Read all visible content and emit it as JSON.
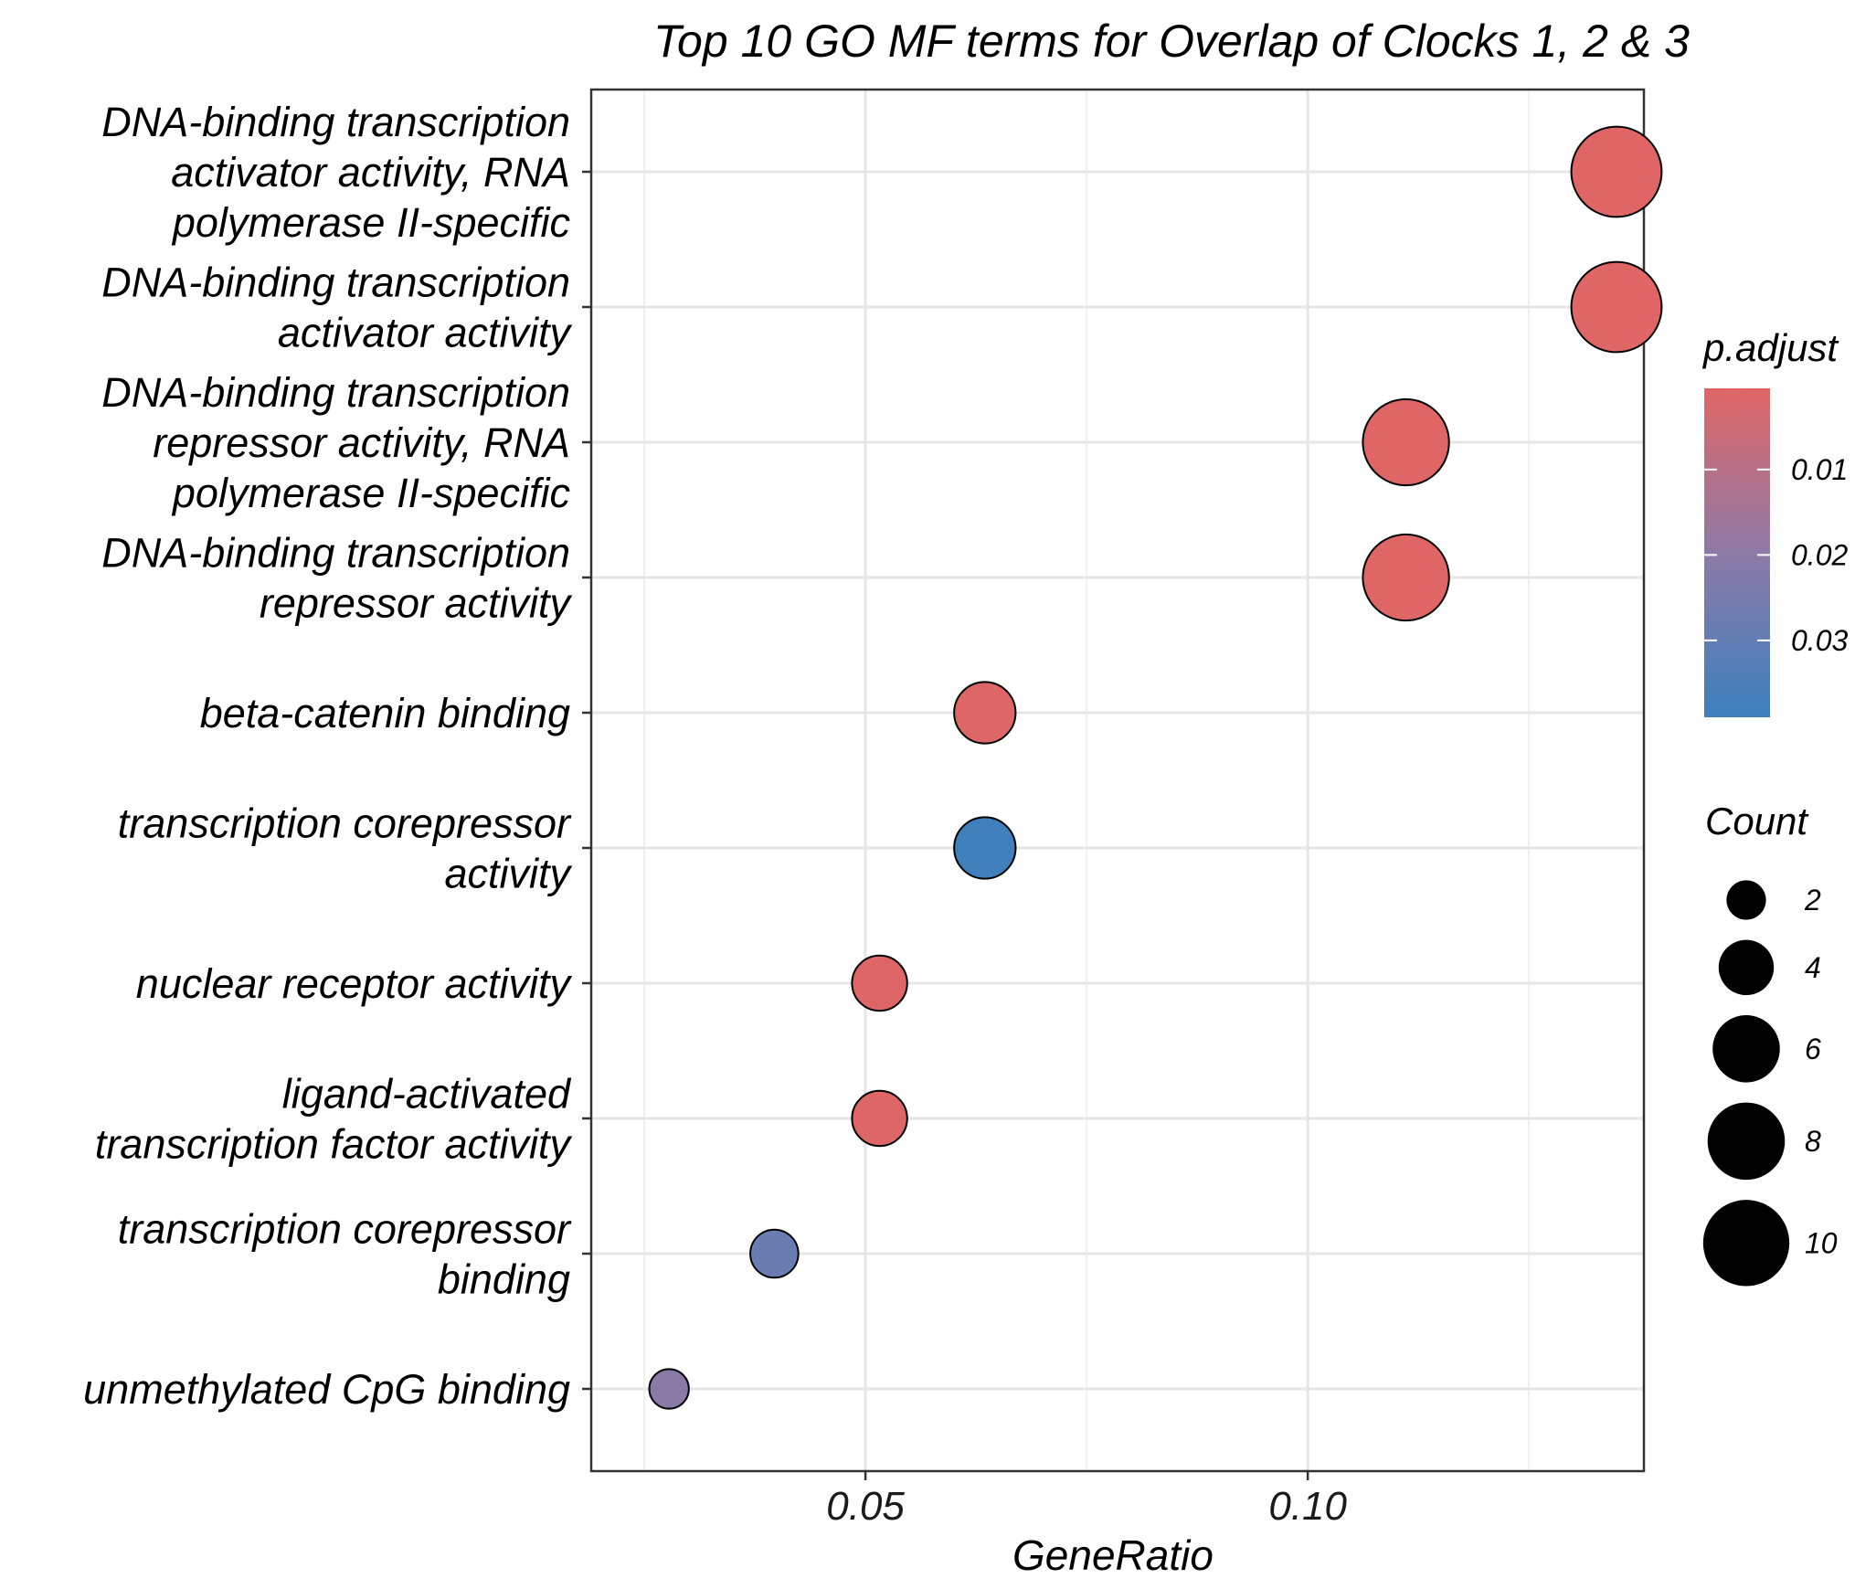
{
  "chart_data": {
    "type": "scatter",
    "title": "Top 10 GO MF terms for Overlap of Clocks 1, 2 & 3",
    "xlabel": "GeneRatio",
    "ylabel": "",
    "xlim": [
      0.019,
      0.138
    ],
    "x_ticks": [
      {
        "value": 0.05,
        "label": "0.05"
      },
      {
        "value": 0.1,
        "label": "0.10"
      }
    ],
    "x_minor_gridlines": [
      0.025,
      0.075,
      0.125
    ],
    "grid": true,
    "legend_position": "right",
    "categories": [
      [
        "DNA-binding transcription",
        "activator activity, RNA",
        "polymerase II-specific"
      ],
      [
        "DNA-binding transcription",
        "activator activity"
      ],
      [
        "DNA-binding transcription",
        "repressor activity, RNA",
        "polymerase II-specific"
      ],
      [
        "DNA-binding transcription",
        "repressor activity"
      ],
      [
        "beta-catenin binding"
      ],
      [
        "transcription corepressor",
        "activity"
      ],
      [
        "nuclear receptor activity"
      ],
      [
        "ligand-activated",
        "transcription factor activity"
      ],
      [
        "transcription corepressor",
        "binding"
      ],
      [
        "unmethylated CpG binding"
      ]
    ],
    "points": [
      {
        "x": 0.1349,
        "count": 11,
        "p_adjust": 0.0005
      },
      {
        "x": 0.1349,
        "count": 11,
        "p_adjust": 0.0005
      },
      {
        "x": 0.1111,
        "count": 10,
        "p_adjust": 0.0006
      },
      {
        "x": 0.1111,
        "count": 10,
        "p_adjust": 0.0006
      },
      {
        "x": 0.0635,
        "count": 5,
        "p_adjust": 0.0008
      },
      {
        "x": 0.0635,
        "count": 5,
        "p_adjust": 0.038
      },
      {
        "x": 0.0516,
        "count": 4,
        "p_adjust": 0.0009
      },
      {
        "x": 0.0516,
        "count": 4,
        "p_adjust": 0.0009
      },
      {
        "x": 0.0397,
        "count": 3,
        "p_adjust": 0.028
      },
      {
        "x": 0.0278,
        "count": 2,
        "p_adjust": 0.021
      }
    ],
    "color_scale": {
      "title": "p.adjust",
      "low_color": "#e06666",
      "mid_color": "#8e7aa6",
      "high_color": "#3b80bd",
      "domain": [
        0.0005,
        0.039
      ],
      "ticks": [
        {
          "value": 0.01,
          "label": "0.01"
        },
        {
          "value": 0.02,
          "label": "0.02"
        },
        {
          "value": 0.03,
          "label": "0.03"
        }
      ]
    },
    "size_scale": {
      "title": "Count",
      "items": [
        {
          "value": 2,
          "label": "2"
        },
        {
          "value": 4,
          "label": "4"
        },
        {
          "value": 6,
          "label": "6"
        },
        {
          "value": 8,
          "label": "8"
        },
        {
          "value": 10,
          "label": "10"
        }
      ]
    }
  }
}
